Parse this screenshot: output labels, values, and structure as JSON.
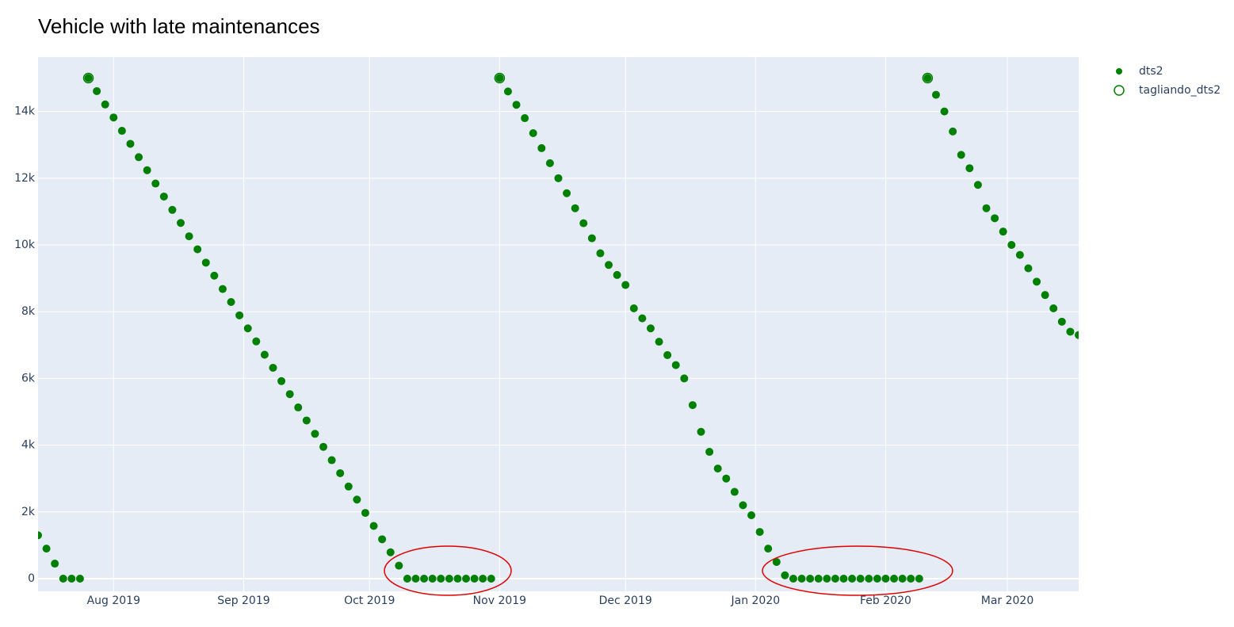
{
  "chart_data": {
    "type": "scatter",
    "title": "Vehicle with late maintenances",
    "series": [
      {
        "name": "dts2",
        "color": "#008000",
        "mode": "markers",
        "x": [
          "2019-07-14",
          "2019-07-16",
          "2019-07-18",
          "2019-07-20",
          "2019-07-22",
          "2019-07-24",
          "2019-07-26",
          "2019-07-28",
          "2019-07-30",
          "2019-08-01",
          "2019-08-03",
          "2019-08-05",
          "2019-08-07",
          "2019-08-09",
          "2019-08-11",
          "2019-08-13",
          "2019-08-15",
          "2019-08-17",
          "2019-08-19",
          "2019-08-21",
          "2019-08-23",
          "2019-08-25",
          "2019-08-27",
          "2019-08-29",
          "2019-08-31",
          "2019-09-02",
          "2019-09-04",
          "2019-09-06",
          "2019-09-08",
          "2019-09-10",
          "2019-09-12",
          "2019-09-14",
          "2019-09-16",
          "2019-09-18",
          "2019-09-20",
          "2019-09-22",
          "2019-09-24",
          "2019-09-26",
          "2019-09-28",
          "2019-09-30",
          "2019-10-02",
          "2019-10-04",
          "2019-10-06",
          "2019-10-08",
          "2019-10-10",
          "2019-10-12",
          "2019-10-14",
          "2019-10-16",
          "2019-10-18",
          "2019-10-20",
          "2019-10-22",
          "2019-10-24",
          "2019-10-26",
          "2019-10-28",
          "2019-10-30",
          "2019-11-01",
          "2019-11-03",
          "2019-11-05",
          "2019-11-07",
          "2019-11-09",
          "2019-11-11",
          "2019-11-13",
          "2019-11-15",
          "2019-11-17",
          "2019-11-19",
          "2019-11-21",
          "2019-11-23",
          "2019-11-25",
          "2019-11-27",
          "2019-11-29",
          "2019-12-01",
          "2019-12-03",
          "2019-12-05",
          "2019-12-07",
          "2019-12-09",
          "2019-12-11",
          "2019-12-13",
          "2019-12-15",
          "2019-12-17",
          "2019-12-19",
          "2019-12-21",
          "2019-12-23",
          "2019-12-25",
          "2019-12-27",
          "2019-12-29",
          "2019-12-31",
          "2020-01-02",
          "2020-01-04",
          "2020-01-06",
          "2020-01-08",
          "2020-01-10",
          "2020-01-12",
          "2020-01-14",
          "2020-01-16",
          "2020-01-18",
          "2020-01-20",
          "2020-01-22",
          "2020-01-24",
          "2020-01-26",
          "2020-01-28",
          "2020-01-30",
          "2020-02-01",
          "2020-02-03",
          "2020-02-05",
          "2020-02-07",
          "2020-02-09",
          "2020-02-11",
          "2020-02-13",
          "2020-02-15",
          "2020-02-17",
          "2020-02-19",
          "2020-02-21",
          "2020-02-23",
          "2020-02-25",
          "2020-02-27",
          "2020-02-29",
          "2020-03-02",
          "2020-03-04",
          "2020-03-06",
          "2020-03-08",
          "2020-03-10",
          "2020-03-12",
          "2020-03-14",
          "2020-03-16",
          "2020-03-18"
        ],
        "values": [
          1300,
          900,
          450,
          0,
          0,
          0,
          15000,
          14610,
          14210,
          13820,
          13420,
          13030,
          12630,
          12240,
          11840,
          11450,
          11050,
          10660,
          10260,
          9870,
          9470,
          9080,
          8680,
          8290,
          7890,
          7500,
          7110,
          6710,
          6320,
          5920,
          5530,
          5130,
          4740,
          4340,
          3950,
          3550,
          3160,
          2760,
          2370,
          1970,
          1580,
          1180,
          790,
          390,
          0,
          0,
          0,
          0,
          0,
          0,
          0,
          0,
          0,
          0,
          0,
          15000,
          14600,
          14200,
          13800,
          13350,
          12900,
          12450,
          12000,
          11550,
          11100,
          10650,
          10200,
          9750,
          9400,
          9100,
          8800,
          8100,
          7800,
          7500,
          7100,
          6700,
          6400,
          6000,
          5200,
          4400,
          3800,
          3300,
          3000,
          2600,
          2200,
          1900,
          1400,
          900,
          500,
          100,
          0,
          0,
          0,
          0,
          0,
          0,
          0,
          0,
          0,
          0,
          0,
          0,
          0,
          0,
          0,
          0,
          15000,
          14500,
          14000,
          13400,
          12700,
          12300,
          11800,
          11100,
          10800,
          10400,
          10000,
          9700,
          9300,
          8900,
          8500,
          8100,
          7700,
          7400,
          7300
        ]
      },
      {
        "name": "tagliando_dts2",
        "color": "#008000",
        "mode": "open-markers",
        "x": [
          "2019-07-26",
          "2019-11-01",
          "2020-02-11"
        ],
        "values": [
          15000,
          15000,
          15000
        ]
      }
    ],
    "xlim": [
      "2019-07-14",
      "2020-03-18"
    ],
    "xticks": [
      {
        "value": "2019-08-01",
        "label": "Aug 2019"
      },
      {
        "value": "2019-09-01",
        "label": "Sep 2019"
      },
      {
        "value": "2019-10-01",
        "label": "Oct 2019"
      },
      {
        "value": "2019-11-01",
        "label": "Nov 2019"
      },
      {
        "value": "2019-12-01",
        "label": "Dec 2019"
      },
      {
        "value": "2020-01-01",
        "label": "Jan 2020"
      },
      {
        "value": "2020-02-01",
        "label": "Feb 2020"
      },
      {
        "value": "2020-03-01",
        "label": "Mar 2020"
      }
    ],
    "ylim": [
      -380,
      15630
    ],
    "yticks": [
      0,
      {
        "value": 2000,
        "label": "2k"
      },
      {
        "value": 4000,
        "label": "4k"
      },
      {
        "value": 6000,
        "label": "6k"
      },
      {
        "value": 8000,
        "label": "8k"
      },
      {
        "value": 10000,
        "label": "10k"
      },
      {
        "value": 12000,
        "label": "12k"
      },
      {
        "value": 14000,
        "label": "14k"
      }
    ],
    "grid": true,
    "legend": "right"
  }
}
